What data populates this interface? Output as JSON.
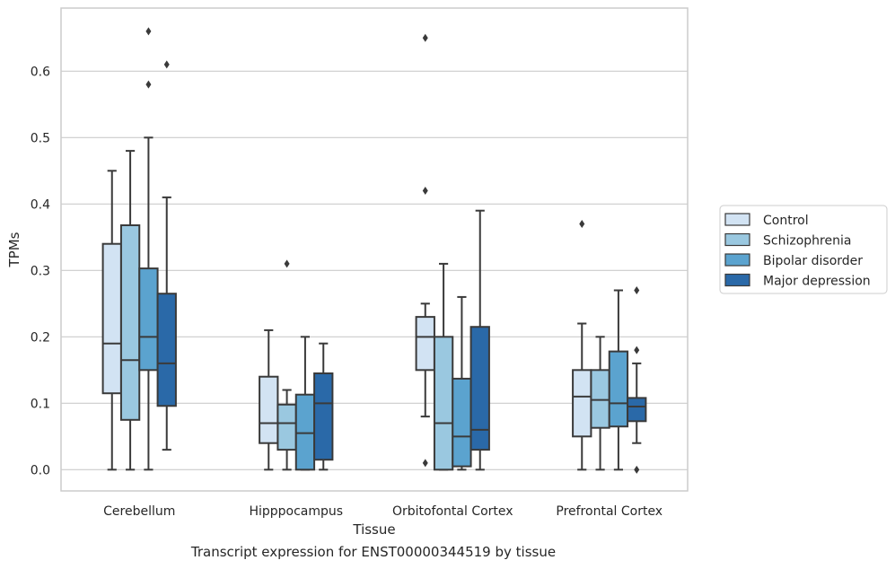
{
  "caption": "Transcript expression for ENST00000344519 by tissue",
  "chart_data": {
    "type": "box",
    "xlabel": "Tissue",
    "ylabel": "TPMs",
    "ylim": [
      -0.032,
      0.695
    ],
    "yticks": [
      0.0,
      0.1,
      0.2,
      0.3,
      0.4,
      0.5,
      0.6
    ],
    "ytick_labels": [
      "0.0",
      "0.1",
      "0.2",
      "0.3",
      "0.4",
      "0.5",
      "0.6"
    ],
    "grid": "horizontal",
    "legend_position": "right",
    "categories": [
      "Cerebellum",
      "Hipppocampus",
      "Orbitofontal Cortex",
      "Prefrontal Cortex"
    ],
    "series": [
      {
        "name": "Control",
        "color": "#d2e3f3",
        "boxes": [
          {
            "whislo": 0.0,
            "q1": 0.115,
            "med": 0.19,
            "q3": 0.34,
            "whishi": 0.45,
            "fliers": []
          },
          {
            "whislo": 0.0,
            "q1": 0.04,
            "med": 0.07,
            "q3": 0.14,
            "whishi": 0.21,
            "fliers": []
          },
          {
            "whislo": 0.08,
            "q1": 0.15,
            "med": 0.2,
            "q3": 0.23,
            "whishi": 0.25,
            "fliers": [
              0.42,
              0.65,
              0.01
            ]
          },
          {
            "whislo": 0.0,
            "q1": 0.05,
            "med": 0.11,
            "q3": 0.15,
            "whishi": 0.22,
            "fliers": [
              0.37
            ]
          }
        ]
      },
      {
        "name": "Schizophrenia",
        "color": "#9ac8e0",
        "boxes": [
          {
            "whislo": 0.0,
            "q1": 0.075,
            "med": 0.165,
            "q3": 0.368,
            "whishi": 0.48,
            "fliers": []
          },
          {
            "whislo": 0.0,
            "q1": 0.03,
            "med": 0.07,
            "q3": 0.098,
            "whishi": 0.12,
            "fliers": [
              0.31
            ]
          },
          {
            "whislo": 0.0,
            "q1": 0.0,
            "med": 0.07,
            "q3": 0.2,
            "whishi": 0.31,
            "fliers": []
          },
          {
            "whislo": 0.0,
            "q1": 0.063,
            "med": 0.105,
            "q3": 0.15,
            "whishi": 0.2,
            "fliers": []
          }
        ]
      },
      {
        "name": "Bipolar disorder",
        "color": "#5ba3cf",
        "boxes": [
          {
            "whislo": 0.0,
            "q1": 0.15,
            "med": 0.2,
            "q3": 0.303,
            "whishi": 0.5,
            "fliers": [
              0.58,
              0.66
            ]
          },
          {
            "whislo": 0.0,
            "q1": 0.0,
            "med": 0.055,
            "q3": 0.113,
            "whishi": 0.2,
            "fliers": []
          },
          {
            "whislo": 0.0,
            "q1": 0.005,
            "med": 0.05,
            "q3": 0.137,
            "whishi": 0.26,
            "fliers": []
          },
          {
            "whislo": 0.0,
            "q1": 0.065,
            "med": 0.1,
            "q3": 0.178,
            "whishi": 0.27,
            "fliers": []
          }
        ]
      },
      {
        "name": "Major depression",
        "color": "#2a69a8",
        "boxes": [
          {
            "whislo": 0.03,
            "q1": 0.096,
            "med": 0.16,
            "q3": 0.265,
            "whishi": 0.41,
            "fliers": [
              0.61
            ]
          },
          {
            "whislo": 0.0,
            "q1": 0.015,
            "med": 0.1,
            "q3": 0.145,
            "whishi": 0.19,
            "fliers": []
          },
          {
            "whislo": 0.0,
            "q1": 0.03,
            "med": 0.06,
            "q3": 0.215,
            "whishi": 0.39,
            "fliers": []
          },
          {
            "whislo": 0.04,
            "q1": 0.073,
            "med": 0.095,
            "q3": 0.108,
            "whishi": 0.16,
            "fliers": [
              0.27,
              0.18,
              0.0
            ]
          }
        ]
      }
    ]
  }
}
